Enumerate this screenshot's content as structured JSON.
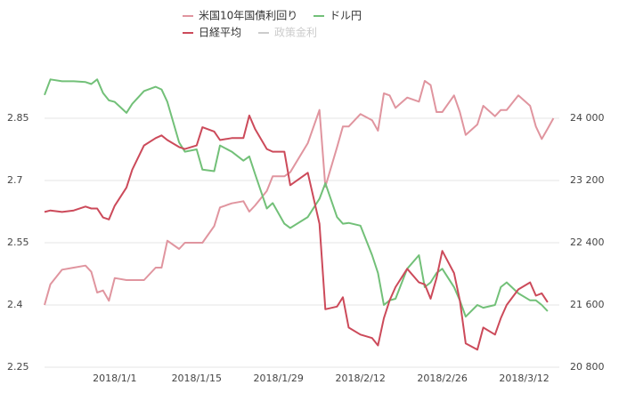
{
  "chart_data": {
    "type": "line",
    "x": [
      -12,
      -11,
      -9,
      -7,
      -5,
      -4,
      -3,
      -2,
      -1,
      0,
      2,
      3,
      5,
      7,
      8,
      9,
      11,
      12,
      14,
      15,
      17,
      18,
      20,
      22,
      23,
      24,
      26,
      27,
      29,
      30,
      33,
      35,
      36,
      38,
      39,
      40,
      42,
      44,
      45,
      46,
      47,
      48,
      50,
      52,
      53,
      54,
      55,
      56,
      58,
      59,
      60,
      62,
      63,
      65,
      66,
      67,
      69,
      71,
      72,
      73,
      74,
      75
    ],
    "xlim": [
      -12,
      76
    ],
    "xticks": [
      {
        "value": 0,
        "label": "2018/1/1"
      },
      {
        "value": 14,
        "label": "2018/1/15"
      },
      {
        "value": 28,
        "label": "2018/1/29"
      },
      {
        "value": 42,
        "label": "2018/2/12"
      },
      {
        "value": 56,
        "label": "2018/2/26"
      },
      {
        "value": 70,
        "label": "2018/3/12"
      }
    ],
    "ylim": [
      2.25,
      3.0
    ],
    "yticks": [
      2.25,
      2.4,
      2.55,
      2.7,
      2.85
    ],
    "y2lim": [
      20800,
      24800
    ],
    "y2ticks": [
      {
        "value": 20800,
        "label": "20 800"
      },
      {
        "value": 21600,
        "label": "21 600"
      },
      {
        "value": 22400,
        "label": "22 400"
      },
      {
        "value": 23200,
        "label": "23 200"
      },
      {
        "value": 24000,
        "label": "24 000"
      }
    ],
    "grid": true,
    "legend": "top",
    "series": [
      {
        "name": "米国10年国債利回り",
        "color": "#e0959f",
        "values": [
          2.4,
          2.45,
          2.485,
          2.49,
          2.495,
          2.48,
          2.43,
          2.435,
          2.41,
          2.465,
          2.46,
          2.46,
          2.46,
          2.49,
          2.49,
          2.555,
          2.535,
          2.55,
          2.55,
          2.55,
          2.59,
          2.635,
          2.645,
          2.65,
          2.625,
          2.64,
          2.675,
          2.71,
          2.71,
          2.72,
          2.79,
          2.87,
          2.685,
          2.78,
          2.83,
          2.83,
          2.86,
          2.845,
          2.82,
          2.91,
          2.905,
          2.875,
          2.9,
          2.89,
          2.94,
          2.93,
          2.865,
          2.865,
          2.905,
          2.865,
          2.81,
          2.835,
          2.88,
          2.855,
          2.87,
          2.87,
          2.905,
          2.88,
          2.83,
          2.8,
          2.825,
          2.85
        ]
      },
      {
        "name": "ドル円",
        "color": "#72c078",
        "axis": "y2",
        "values": [
          24300,
          24500,
          24475,
          24475,
          24465,
          24440,
          24500,
          24325,
          24230,
          24210,
          24070,
          24185,
          24350,
          24405,
          24370,
          24210,
          23690,
          23570,
          23600,
          23340,
          23320,
          23650,
          23570,
          23455,
          23510,
          23280,
          22840,
          22910,
          22645,
          22590,
          22730,
          22965,
          23165,
          22730,
          22645,
          22655,
          22620,
          22240,
          22010,
          21600,
          21660,
          21680,
          22065,
          22240,
          21830,
          21890,
          22010,
          22065,
          21830,
          21660,
          21450,
          21600,
          21565,
          21600,
          21830,
          21890,
          21750,
          21660,
          21660,
          21600,
          21520,
          null
        ]
      },
      {
        "name": "日経平均",
        "color": "#cc4a5a",
        "axis": "y2",
        "values": [
          22795,
          22815,
          22795,
          22815,
          22865,
          22840,
          22840,
          22725,
          22700,
          22875,
          23110,
          23340,
          23650,
          23745,
          23780,
          23720,
          23630,
          23605,
          23650,
          23885,
          23830,
          23720,
          23745,
          23745,
          24035,
          23860,
          23605,
          23570,
          23570,
          23140,
          23300,
          22645,
          21545,
          21580,
          21700,
          21310,
          21220,
          21175,
          21080,
          21430,
          21660,
          21830,
          22065,
          21890,
          21865,
          21680,
          21945,
          22295,
          22010,
          21660,
          21105,
          21025,
          21310,
          21220,
          21430,
          21600,
          21800,
          21890,
          21720,
          21750,
          21635,
          null
        ]
      },
      {
        "name": "政策金利",
        "color": "#cccccc",
        "hidden": true,
        "values": [
          null,
          null,
          null,
          null,
          null,
          null,
          null,
          null,
          null,
          null,
          null,
          null,
          null,
          null,
          null,
          null,
          null,
          null,
          null,
          null,
          null,
          null,
          null,
          null,
          null,
          null,
          null,
          null,
          null,
          null,
          null,
          null,
          null,
          null,
          null,
          null,
          null,
          null,
          null,
          null,
          null,
          null,
          null,
          null,
          null,
          null,
          null,
          null,
          null,
          null,
          null,
          null,
          null,
          null,
          null,
          null,
          null,
          null,
          null,
          null,
          null,
          null
        ]
      }
    ]
  }
}
